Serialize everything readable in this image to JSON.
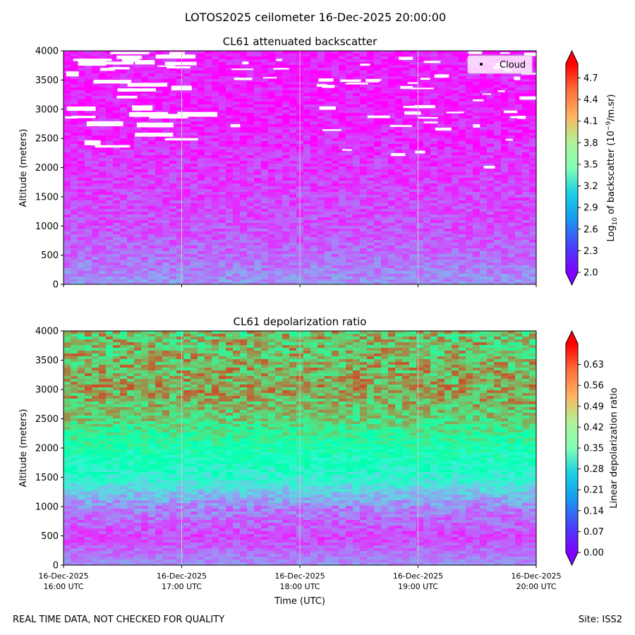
{
  "figure_title": "LOTOS2025 ceilometer 16-Dec-2025 20:00:00",
  "footer": {
    "left": "REAL TIME DATA, NOT CHECKED FOR QUALITY",
    "right": "Site: ISS2"
  },
  "xlabel": "Time (UTC)",
  "x_ticks": [
    {
      "date": "16-Dec-2025",
      "time": "16:00 UTC"
    },
    {
      "date": "16-Dec-2025",
      "time": "17:00 UTC"
    },
    {
      "date": "16-Dec-2025",
      "time": "18:00 UTC"
    },
    {
      "date": "16-Dec-2025",
      "time": "19:00 UTC"
    },
    {
      "date": "16-Dec-2025",
      "time": "20:00 UTC"
    }
  ],
  "chart_data": [
    {
      "type": "heatmap",
      "title": "CL61 attenuated backscatter",
      "ylabel": "Altitude (meters)",
      "ylim": [
        0,
        4000
      ],
      "yticks": [
        0,
        500,
        1000,
        1500,
        2000,
        2500,
        3000,
        3500,
        4000
      ],
      "xlim_hours": [
        16,
        20
      ],
      "colorbar": {
        "label": "Log10 of backscatter (10^-9/m.sr)",
        "label_base": "Log",
        "label_sub": "10",
        "label_mid": " of backscatter (10",
        "label_sup": "−9",
        "label_end": "/m.sr)",
        "range": [
          2.0,
          4.9
        ],
        "ticks": [
          "2.0",
          "2.3",
          "2.6",
          "2.9",
          "3.2",
          "3.5",
          "3.8",
          "4.1",
          "4.4",
          "4.7"
        ]
      },
      "legend": {
        "label": "Cloud",
        "loc": "upper right"
      },
      "profile": [
        {
          "altitude": 0,
          "value": 2.6
        },
        {
          "altitude": 500,
          "value": 2.4
        },
        {
          "altitude": 1000,
          "value": 2.3
        },
        {
          "altitude": 2000,
          "value": 2.2
        },
        {
          "altitude": 3000,
          "value": 2.1
        },
        {
          "altitude": 4000,
          "value": 2.1
        }
      ]
    },
    {
      "type": "heatmap",
      "title": "CL61 depolarization ratio",
      "ylabel": "Altitude (meters)",
      "ylim": [
        0,
        4000
      ],
      "yticks": [
        0,
        500,
        1000,
        1500,
        2000,
        2500,
        3000,
        3500,
        4000
      ],
      "xlim_hours": [
        16,
        20
      ],
      "colorbar": {
        "label": "Linear depolarization ratio",
        "range": [
          0.0,
          0.7
        ],
        "ticks": [
          "0.00",
          "0.07",
          "0.14",
          "0.21",
          "0.28",
          "0.35",
          "0.42",
          "0.49",
          "0.56",
          "0.63"
        ]
      },
      "profile": [
        {
          "altitude": 0,
          "value": 0.14
        },
        {
          "altitude": 500,
          "value": 0.06
        },
        {
          "altitude": 1000,
          "value": 0.12
        },
        {
          "altitude": 1500,
          "value": 0.28
        },
        {
          "altitude": 2000,
          "value": 0.36
        },
        {
          "altitude": 2500,
          "value": 0.48
        },
        {
          "altitude": 3000,
          "value": 0.54
        },
        {
          "altitude": 3500,
          "value": 0.52
        },
        {
          "altitude": 4000,
          "value": 0.5
        }
      ]
    }
  ]
}
